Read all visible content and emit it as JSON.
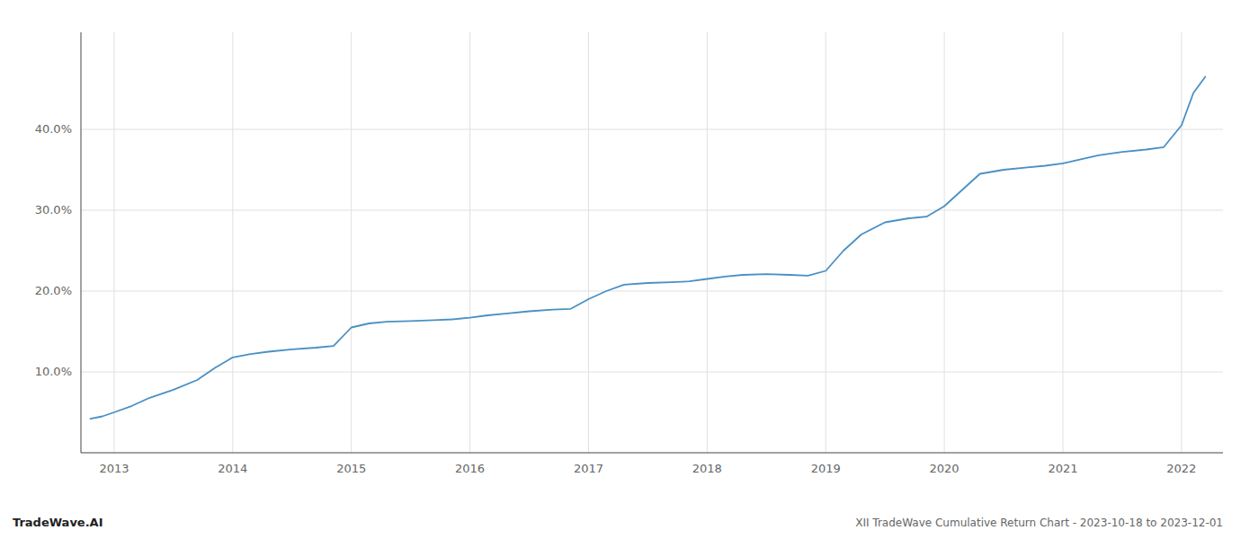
{
  "chart_data": {
    "type": "line",
    "title": "XII TradeWave Cumulative Return Chart - 2023-10-18 to 2023-12-01",
    "annotations": [
      "TradeWave.AI"
    ],
    "color": "#4a90c4",
    "grid": true,
    "x": [
      2012.8,
      2012.9,
      2013.0,
      2013.15,
      2013.3,
      2013.5,
      2013.7,
      2013.85,
      2014.0,
      2014.15,
      2014.3,
      2014.5,
      2014.7,
      2014.85,
      2015.0,
      2015.15,
      2015.3,
      2015.5,
      2015.7,
      2015.85,
      2016.0,
      2016.15,
      2016.3,
      2016.5,
      2016.7,
      2016.85,
      2017.0,
      2017.15,
      2017.3,
      2017.5,
      2017.7,
      2017.85,
      2018.0,
      2018.15,
      2018.3,
      2018.5,
      2018.7,
      2018.85,
      2019.0,
      2019.15,
      2019.3,
      2019.5,
      2019.7,
      2019.85,
      2020.0,
      2020.15,
      2020.3,
      2020.5,
      2020.7,
      2020.85,
      2021.0,
      2021.15,
      2021.3,
      2021.5,
      2021.7,
      2021.85,
      2022.0,
      2022.1,
      2022.2
    ],
    "values": [
      4.2,
      4.5,
      5.0,
      5.8,
      6.8,
      7.8,
      9.0,
      10.5,
      11.8,
      12.2,
      12.5,
      12.8,
      13.0,
      13.2,
      15.5,
      16.0,
      16.2,
      16.3,
      16.4,
      16.5,
      16.7,
      17.0,
      17.2,
      17.5,
      17.7,
      17.8,
      19.0,
      20.0,
      20.8,
      21.0,
      21.1,
      21.2,
      21.5,
      21.8,
      22.0,
      22.1,
      22.0,
      21.9,
      22.5,
      25.0,
      27.0,
      28.5,
      29.0,
      29.2,
      30.5,
      32.5,
      34.5,
      35.0,
      35.3,
      35.5,
      35.8,
      36.3,
      36.8,
      37.2,
      37.5,
      37.8,
      40.5,
      44.5,
      46.5
    ],
    "xlim": [
      2012.72,
      2022.35
    ],
    "ylim": [
      0,
      52
    ],
    "xticks": [
      2013,
      2014,
      2015,
      2016,
      2017,
      2018,
      2019,
      2020,
      2021,
      2022
    ],
    "yticks": [
      {
        "value": 10.0,
        "label": "10.0%"
      },
      {
        "value": 20.0,
        "label": "20.0%"
      },
      {
        "value": 30.0,
        "label": "30.0%"
      },
      {
        "value": 40.0,
        "label": "40.0%"
      }
    ]
  }
}
